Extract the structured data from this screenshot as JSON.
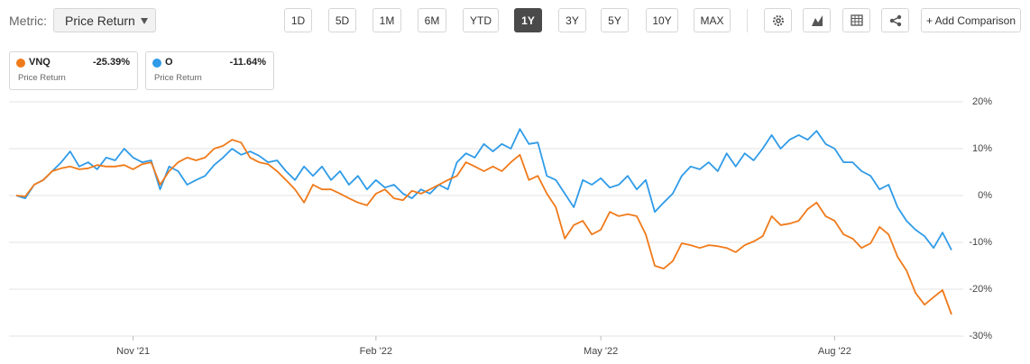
{
  "toolbar": {
    "metric_label": "Metric:",
    "metric_value": "Price Return",
    "periods": [
      "1D",
      "5D",
      "1M",
      "6M",
      "YTD",
      "1Y",
      "3Y",
      "5Y",
      "10Y",
      "MAX"
    ],
    "active_period": 5,
    "add_comparison": "+ Add Comparison"
  },
  "chart_data": {
    "type": "line",
    "categories": [
      null,
      null,
      null,
      null,
      null,
      null,
      null,
      null,
      null,
      null,
      null,
      null,
      null,
      "Nov '21",
      null,
      null,
      null,
      null,
      null,
      null,
      null,
      null,
      null,
      null,
      null,
      null,
      null,
      null,
      null,
      null,
      null,
      null,
      null,
      null,
      null,
      null,
      null,
      null,
      null,
      null,
      "Feb '22",
      null,
      null,
      null,
      null,
      null,
      null,
      null,
      null,
      null,
      null,
      null,
      null,
      null,
      null,
      null,
      null,
      null,
      null,
      null,
      null,
      null,
      null,
      null,
      null,
      "May '22",
      null,
      null,
      null,
      null,
      null,
      null,
      null,
      null,
      null,
      null,
      null,
      null,
      null,
      null,
      null,
      null,
      null,
      null,
      null,
      null,
      null,
      null,
      null,
      null,
      null,
      "Aug '22",
      null,
      null,
      null,
      null,
      null,
      null,
      null,
      null,
      null,
      null,
      null,
      null,
      null
    ],
    "series": [
      {
        "name": "VNQ",
        "color": "#f07a1a",
        "label": "Price Return",
        "change": {
          "value": -25.39,
          "label": "-25.39%"
        },
        "values": [
          0,
          -0.2,
          2.3,
          3.3,
          5.2,
          5.8,
          6.2,
          5.6,
          5.8,
          6.5,
          6.2,
          6.2,
          6.5,
          5.6,
          6.7,
          7.1,
          2.3,
          5.2,
          7.1,
          8.1,
          7.5,
          8.1,
          10,
          10.6,
          11.9,
          11.3,
          8.1,
          7.1,
          6.7,
          5.2,
          3.3,
          1.3,
          -1.5,
          2.3,
          1.3,
          1.3,
          0.4,
          -0.6,
          -1.5,
          -2.1,
          0.4,
          1.3,
          -0.6,
          -1,
          1,
          0.4,
          1.3,
          2.3,
          3.3,
          4.2,
          7.1,
          6.2,
          5.2,
          6.2,
          5.2,
          7.1,
          8.7,
          3.3,
          4.2,
          0.4,
          -2.5,
          -9.2,
          -6.3,
          -5.4,
          -8.3,
          -7.3,
          -3.5,
          -4.4,
          -4,
          -4.4,
          -8.3,
          -15,
          -15.6,
          -14,
          -10.2,
          -10.6,
          -11.2,
          -10.6,
          -10.8,
          -11.2,
          -12.1,
          -10.6,
          -9.8,
          -8.7,
          -4.4,
          -6.3,
          -6,
          -5.4,
          -2.9,
          -1.5,
          -4.4,
          -5.4,
          -8.3,
          -9.2,
          -11.2,
          -10.2,
          -6.7,
          -8.3,
          -13.1,
          -16,
          -20.8,
          -23.3,
          -21.7,
          -20.2,
          -25.39
        ]
      },
      {
        "name": "O",
        "color": "#2f9be8",
        "label": "Price Return",
        "change": {
          "value": -11.64,
          "label": "-11.64%"
        },
        "values": [
          0,
          -0.6,
          2.3,
          3.3,
          5.2,
          7.1,
          9.4,
          6.2,
          7.1,
          5.6,
          8.1,
          7.5,
          10,
          8.1,
          7.1,
          7.5,
          1.3,
          6.2,
          5.2,
          2.3,
          3.3,
          4.2,
          6.5,
          8.1,
          10,
          8.7,
          9.4,
          8.5,
          7.1,
          7.5,
          5.2,
          3.3,
          6.2,
          4.2,
          6.2,
          3.3,
          5.2,
          2.3,
          4.2,
          1.3,
          3.3,
          1.7,
          2.3,
          0.4,
          -0.6,
          1.3,
          0.4,
          2.3,
          1.3,
          7.1,
          9,
          8.1,
          11,
          9.4,
          11,
          10,
          14.2,
          11,
          11.3,
          4.2,
          3.3,
          0.4,
          -2.5,
          3.3,
          2.3,
          3.7,
          1.7,
          2.3,
          4.2,
          1.3,
          3.3,
          -3.5,
          -1.5,
          0.4,
          4.2,
          6.2,
          5.6,
          7.1,
          5.2,
          9,
          6.2,
          9,
          7.5,
          10,
          12.9,
          10,
          11.9,
          12.9,
          11.9,
          13.8,
          11,
          10,
          7.1,
          7.1,
          5.2,
          4.2,
          1.3,
          2.3,
          -2.5,
          -5.4,
          -7.3,
          -8.7,
          -11.2,
          -7.9,
          -11.64
        ]
      }
    ],
    "ylim": [
      -30,
      20
    ],
    "yticks": [
      {
        "value": 20,
        "label": "20%"
      },
      {
        "value": 10,
        "label": "10%"
      },
      {
        "value": 0,
        "label": "0%"
      },
      {
        "value": -10,
        "label": "-10%"
      },
      {
        "value": -20,
        "label": "-20%"
      },
      {
        "value": -30,
        "label": "-30%"
      }
    ],
    "grid": true,
    "y_axis_side": "right"
  }
}
